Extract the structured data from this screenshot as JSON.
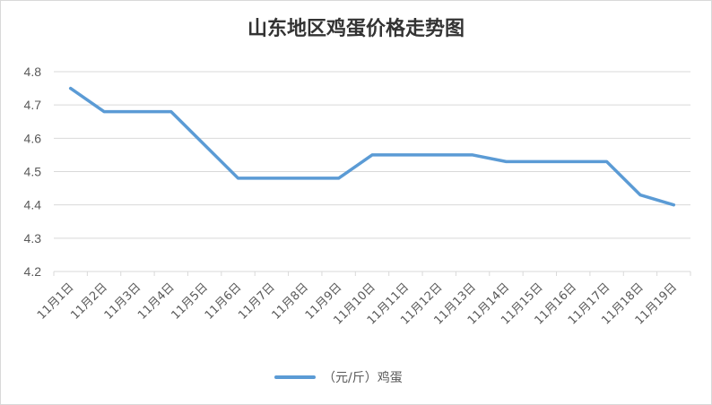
{
  "chart_data": {
    "type": "line",
    "title": "山东地区鸡蛋价格走势图",
    "xlabel": "",
    "ylabel": "",
    "ylim": [
      4.2,
      4.8
    ],
    "yticks": [
      "4.2",
      "4.3",
      "4.4",
      "4.5",
      "4.6",
      "4.7",
      "4.8"
    ],
    "categories": [
      "11月1日",
      "11月2日",
      "11月3日",
      "11月4日",
      "11月5日",
      "11月6日",
      "11月7日",
      "11月8日",
      "11月9日",
      "11月10日",
      "11月11日",
      "11月12日",
      "11月13日",
      "11月14日",
      "11月15日",
      "11月16日",
      "11月17日",
      "11月18日",
      "11月19日"
    ],
    "series": [
      {
        "name": "（元/斤）鸡蛋",
        "color": "#5b9bd5",
        "values": [
          4.75,
          4.68,
          4.68,
          4.68,
          4.58,
          4.48,
          4.48,
          4.48,
          4.48,
          4.55,
          4.55,
          4.55,
          4.55,
          4.53,
          4.53,
          4.53,
          4.53,
          4.43,
          4.4
        ]
      }
    ],
    "grid": true,
    "legend_position": "bottom"
  }
}
